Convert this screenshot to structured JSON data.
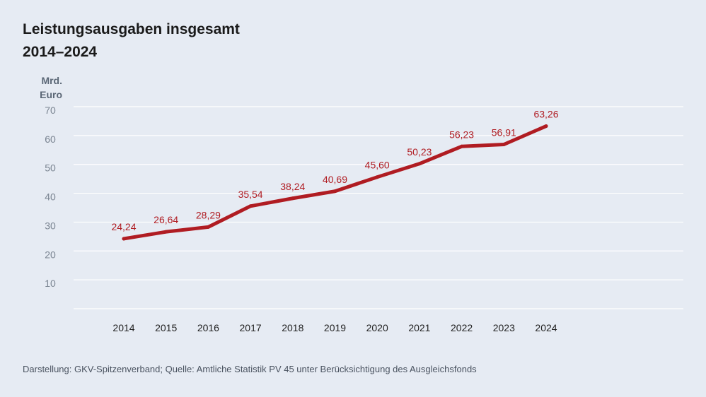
{
  "title_line1": "Leistungsausgaben insgesamt",
  "title_line2": "2014–2024",
  "unit_line1": "Mrd.",
  "unit_line2": "Euro",
  "source": "Darstellung: GKV-Spitzenverband; Quelle: Amtliche Statistik PV 45 unter Berücksichtigung des Ausgleichsfonds",
  "colors": {
    "line": "#b01c22",
    "label": "#b01c22",
    "grid": "#ffffff",
    "tick": "#7a8491",
    "xtick": "#222222"
  },
  "chart_data": {
    "type": "line",
    "title": "Leistungsausgaben insgesamt 2014–2024",
    "ylabel": "Mrd. Euro",
    "xlabel": "",
    "ylim": [
      0,
      70
    ],
    "yticks": [
      10,
      20,
      30,
      40,
      50,
      60,
      70
    ],
    "grid": true,
    "categories": [
      "2014",
      "2015",
      "2016",
      "2017",
      "2018",
      "2019",
      "2020",
      "2021",
      "2022",
      "2023",
      "2024"
    ],
    "values": [
      24.24,
      26.64,
      28.29,
      35.54,
      38.24,
      40.69,
      45.6,
      50.23,
      56.23,
      56.91,
      63.26
    ],
    "labels": [
      "24,24",
      "26,64",
      "28,29",
      "35,54",
      "38,24",
      "40,69",
      "45,60",
      "50,23",
      "56,23",
      "56,91",
      "63,26"
    ]
  }
}
